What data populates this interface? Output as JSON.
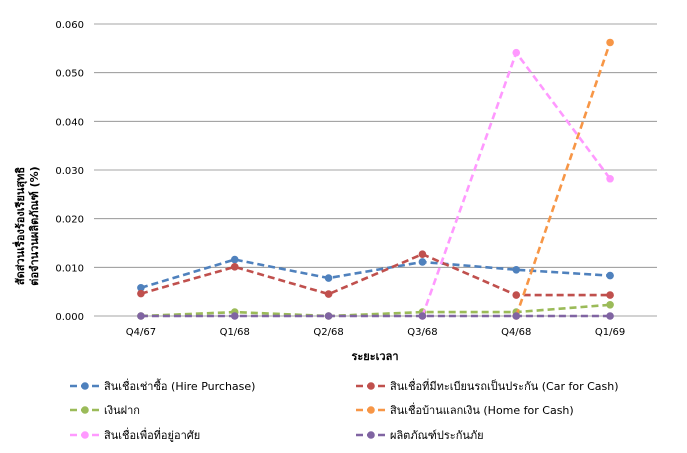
{
  "chart_data": {
    "type": "line",
    "title": "",
    "xlabel": "ระยะเวลา",
    "ylabel_line1": "สัดส่วนเรื่องร้องเรียนสุทธิ",
    "ylabel_line2": "ต่อจำนวนผลิตภัณฑ์ (%)",
    "categories": [
      "Q4/67",
      "Q1/68",
      "Q2/68",
      "Q3/68",
      "Q4/68",
      "Q1/69"
    ],
    "ylim": [
      0,
      0.06
    ],
    "yticks": [
      "0.000",
      "0.010",
      "0.020",
      "0.030",
      "0.040",
      "0.050",
      "0.060"
    ],
    "grid": true,
    "legend_position": "bottom",
    "series": [
      {
        "name": "สินเชื่อเช่าซื้อ (Hire Purchase)",
        "color": "#4f81bd",
        "values": [
          0.0058,
          0.0116,
          0.0078,
          0.0111,
          0.0095,
          0.0083
        ]
      },
      {
        "name": "สินเชื่อที่มีทะเบียนรถเป็นประกัน (Car for Cash)",
        "color": "#c0504d",
        "values": [
          0.0046,
          0.0101,
          0.0045,
          0.0127,
          0.0043,
          0.0043
        ]
      },
      {
        "name": "เงินฝาก",
        "color": "#9bbb59",
        "values": [
          0.0,
          0.0008,
          0.0,
          0.0008,
          0.0008,
          0.0023
        ]
      },
      {
        "name": "สินเชื่อบ้านแลกเงิน (Home for Cash)",
        "color": "#f79646",
        "values": [
          null,
          null,
          null,
          null,
          0.0,
          0.0562
        ]
      },
      {
        "name": "สินเชื่อเพื่อที่อยู่อาศัย",
        "color": "#ff99ff",
        "values": [
          null,
          null,
          null,
          0.0,
          0.0541,
          0.0282
        ]
      },
      {
        "name": "ผลิตภัณฑ์ประกันภัย",
        "color": "#8064a2",
        "values": [
          0.0,
          0.0,
          0.0,
          0.0,
          0.0,
          0.0
        ]
      }
    ]
  }
}
